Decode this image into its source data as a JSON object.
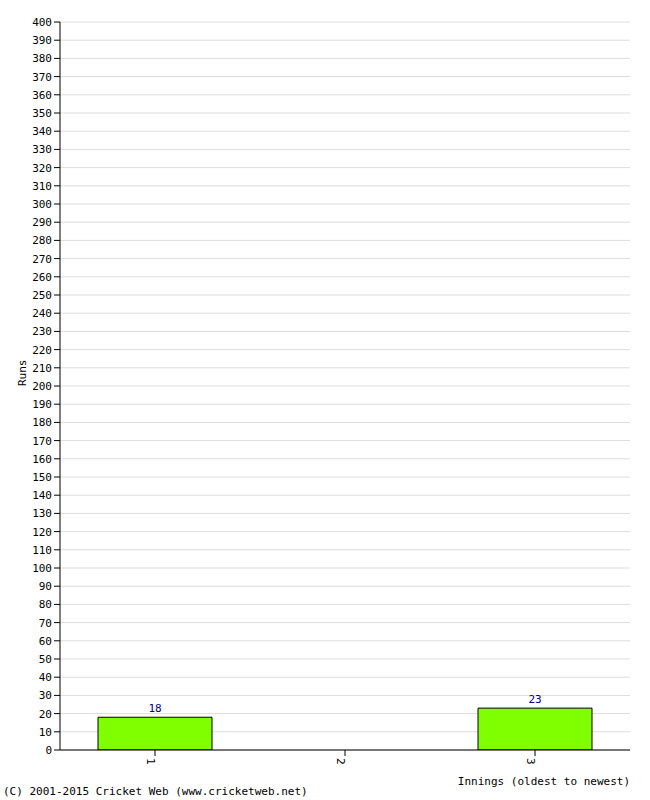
{
  "chart_data": {
    "type": "bar",
    "categories": [
      "1",
      "2",
      "3"
    ],
    "values": [
      18,
      0,
      23
    ],
    "color": "#80ff00",
    "ylim": [
      0,
      400
    ],
    "yticks": [
      0,
      10,
      20,
      30,
      40,
      50,
      60,
      70,
      80,
      90,
      100,
      110,
      120,
      130,
      140,
      150,
      160,
      170,
      180,
      190,
      200,
      210,
      220,
      230,
      240,
      250,
      260,
      270,
      280,
      290,
      300,
      310,
      320,
      330,
      340,
      350,
      360,
      370,
      380,
      390,
      400
    ],
    "grid": true,
    "data_labels": true,
    "x_label": "Innings (oldest to newest)",
    "y_label": "Runs",
    "annotation": "(C) 2001-2015 Cricket Web (www.cricketweb.net)"
  }
}
